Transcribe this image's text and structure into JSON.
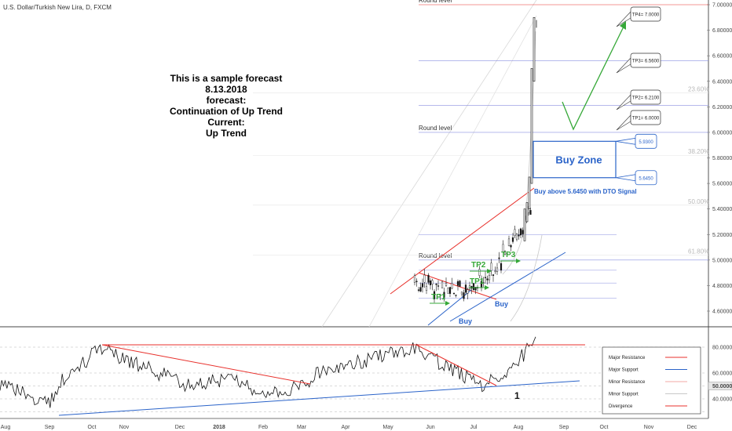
{
  "header": {
    "symbol": "U.S. Dollar/Turkish New Lira, D, FXCM"
  },
  "note": {
    "lines": [
      "This is a sample forecast",
      "8.13.2018",
      "forecast:",
      "Continuation of Up Trend",
      "Current:",
      "Up Trend"
    ]
  },
  "chart_data": {
    "type": "line",
    "price_axis": {
      "ticks": [
        "7.00000",
        "6.80000",
        "6.60000",
        "6.40000",
        "6.20000",
        "6.00000",
        "5.80000",
        "5.60000",
        "5.40000",
        "5.20000",
        "5.00000",
        "4.80000",
        "4.60000"
      ],
      "ylim": [
        4.48,
        7.02
      ]
    },
    "rsi_axis": {
      "ticks": [
        "80.0000",
        "60.0000",
        "50.0000",
        "40.0000"
      ],
      "current_label": "50.0000",
      "ylim": [
        27,
        92
      ]
    },
    "time_axis": [
      "Aug",
      "Sep",
      "Oct",
      "Nov",
      "Dec",
      "2018",
      "Feb",
      "Mar",
      "Apr",
      "May",
      "Jun",
      "Jul",
      "Aug",
      "Sep",
      "Oct",
      "Nov",
      "Dec"
    ],
    "fib_levels": [
      {
        "label": "23.60%",
        "price": 6.31
      },
      {
        "label": "38.20%",
        "price": 5.82
      },
      {
        "label": "50.00%",
        "price": 5.43
      },
      {
        "label": "61.80%",
        "price": 5.04
      }
    ],
    "round_levels": [
      {
        "label": "Round level",
        "price": 7.0
      },
      {
        "label": "Round level",
        "price": 6.0
      },
      {
        "label": "Round level",
        "price": 5.0
      }
    ],
    "targets": [
      {
        "label": "TP4= 7.0000",
        "price": 7.0
      },
      {
        "label": "TP3= 6.5600",
        "price": 6.56
      },
      {
        "label": "TP2= 6.2100",
        "price": 6.21
      },
      {
        "label": "TP1= 6.0000",
        "price": 6.0
      }
    ],
    "buy_zone": {
      "label": "Buy Zone",
      "upper": 5.93,
      "lower": 5.645,
      "upper_label": "5.9300",
      "lower_label": "5.6450",
      "signal": "Buy above 5.6450 with DTO Signal"
    },
    "annotations": {
      "tp_labels": [
        "TP1",
        "TP1",
        "TP2",
        "TP3"
      ],
      "buy_labels": [
        "Buy",
        "Buy"
      ],
      "divergence_mark": "1"
    },
    "legend": {
      "placement": "bottom-right",
      "items": [
        {
          "label": "Major Resistance",
          "color": "#e8312c"
        },
        {
          "label": "Major Support",
          "color": "#2a63c9"
        },
        {
          "label": "Minor Resistance",
          "color": "#f3a8a6"
        },
        {
          "label": "Minor Support",
          "color": "#c8c8c8"
        },
        {
          "label": "Divergence",
          "color": "#e8312c"
        }
      ]
    },
    "colors": {
      "resistance": "#e8312c",
      "support": "#2a63c9",
      "target_arrow": "#36a838",
      "buy_zone": "#2a63c9"
    }
  }
}
